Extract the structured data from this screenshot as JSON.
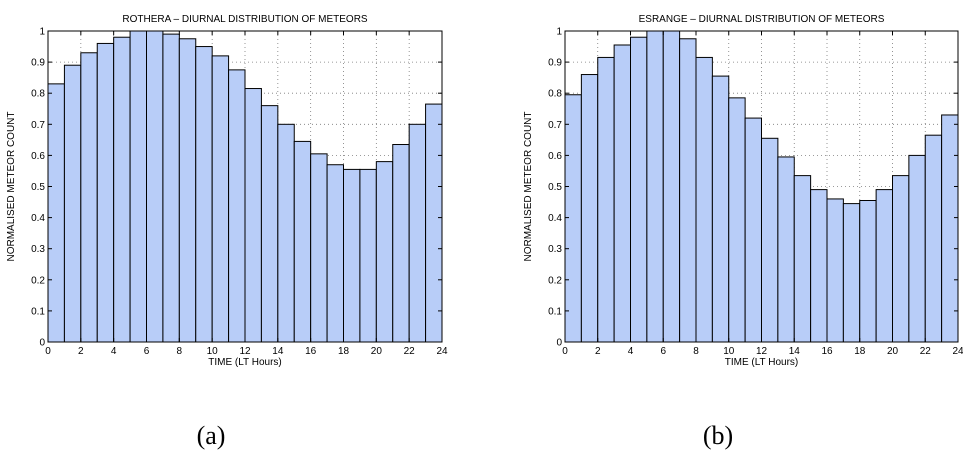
{
  "chart_data": [
    {
      "type": "bar",
      "title": "ROTHERA – DIURNAL DISTRIBUTION OF METEORS",
      "xlabel": "TIME (LT Hours)",
      "ylabel": "NORMALISED METEOR COUNT",
      "xlim": [
        0,
        24
      ],
      "ylim": [
        0,
        1
      ],
      "xticks": [
        "0",
        "2",
        "4",
        "6",
        "8",
        "10",
        "12",
        "14",
        "16",
        "18",
        "20",
        "22",
        "24"
      ],
      "yticks": [
        "0",
        "0.1",
        "0.2",
        "0.3",
        "0.4",
        "0.5",
        "0.6",
        "0.7",
        "0.8",
        "0.9",
        "1"
      ],
      "grid": true,
      "bar_color": "#b8cdf8",
      "x": [
        0.5,
        1.5,
        2.5,
        3.5,
        4.5,
        5.5,
        6.5,
        7.5,
        8.5,
        9.5,
        10.5,
        11.5,
        12.5,
        13.5,
        14.5,
        15.5,
        16.5,
        17.5,
        18.5,
        19.5,
        20.5,
        21.5,
        22.5,
        23.5
      ],
      "values": [
        0.83,
        0.89,
        0.93,
        0.96,
        0.98,
        1.0,
        1.0,
        0.99,
        0.975,
        0.95,
        0.92,
        0.875,
        0.815,
        0.76,
        0.7,
        0.645,
        0.605,
        0.57,
        0.555,
        0.555,
        0.58,
        0.635,
        0.7,
        0.765
      ],
      "caption": "(a)"
    },
    {
      "type": "bar",
      "title": "ESRANGE – DIURNAL DISTRIBUTION OF METEORS",
      "xlabel": "TIME (LT Hours)",
      "ylabel": "NORMALISED METEOR COUNT",
      "xlim": [
        0,
        24
      ],
      "ylim": [
        0,
        1
      ],
      "xticks": [
        "0",
        "2",
        "4",
        "6",
        "8",
        "10",
        "12",
        "14",
        "16",
        "18",
        "20",
        "22",
        "24"
      ],
      "yticks": [
        "0",
        "0.1",
        "0.2",
        "0.3",
        "0.4",
        "0.5",
        "0.6",
        "0.7",
        "0.8",
        "0.9",
        "1"
      ],
      "grid": true,
      "bar_color": "#b8cdf8",
      "x": [
        0.5,
        1.5,
        2.5,
        3.5,
        4.5,
        5.5,
        6.5,
        7.5,
        8.5,
        9.5,
        10.5,
        11.5,
        12.5,
        13.5,
        14.5,
        15.5,
        16.5,
        17.5,
        18.5,
        19.5,
        20.5,
        21.5,
        22.5,
        23.5
      ],
      "values": [
        0.795,
        0.86,
        0.915,
        0.955,
        0.98,
        1.0,
        1.0,
        0.975,
        0.915,
        0.855,
        0.785,
        0.72,
        0.655,
        0.595,
        0.535,
        0.49,
        0.46,
        0.445,
        0.455,
        0.49,
        0.535,
        0.6,
        0.665,
        0.73
      ],
      "caption": "(b)"
    }
  ]
}
